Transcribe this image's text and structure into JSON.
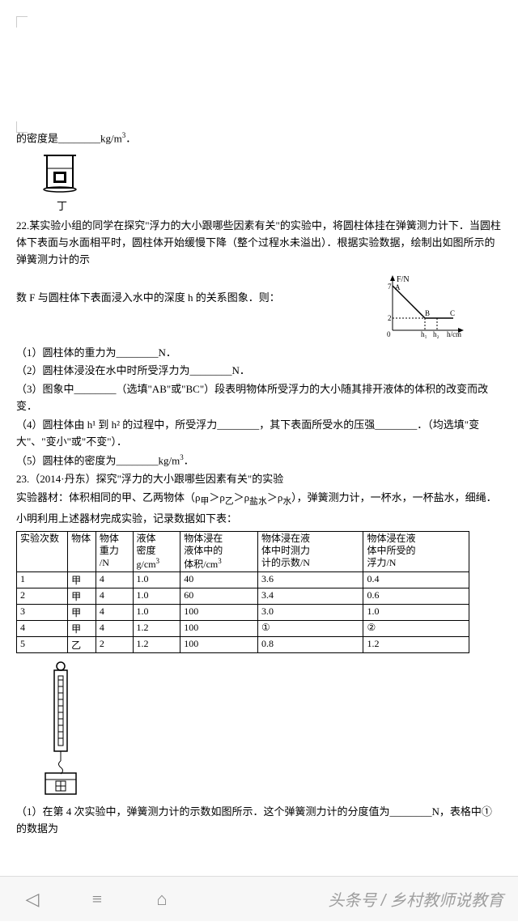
{
  "intro": {
    "density_prefix": "的密度是",
    "density_blank": "________",
    "density_unit": "kg/m",
    "density_unit_sup": "3",
    "beaker_caption": "丁"
  },
  "q22": {
    "num": "22.",
    "text1": "某实验小组的同学在探究\"浮力的大小跟哪些因素有关\"的实验中，将圆柱体挂在弹簧测力计下．当圆柱体下表面与水面相平时，圆柱体开始缓慢下降（整个过程水未溢出）．根据实验数据，绘制出如图所示的弹簧测力计的示",
    "text2": "数 F 与圆柱体下表面浸入水中的深度 h 的关系图象．则：",
    "graph": {
      "ylabel": "F/N",
      "xlabel": "h/cm",
      "ticks_x": [
        "h₁",
        "h₂"
      ],
      "pointA": "A",
      "pointB": "B",
      "pointC": "C",
      "y_values": [
        7,
        2
      ],
      "colors": {
        "axis": "#000000",
        "line": "#000000"
      }
    },
    "p1": "（1）圆柱体的重力为________N．",
    "p2": "（2）圆柱体浸没在水中时所受浮力为________N．",
    "p3": "（3）图象中________（选填\"AB\"或\"BC\"）段表明物体所受浮力的大小随其排开液体的体积的改变而改变．",
    "p4": "（4）圆柱体由 h¹ 到 h² 的过程中，所受浮力________，其下表面所受水的压强________．（均选填\"变大\"、\"变小\"或\"不变\"）．",
    "p5_a": "（5）圆柱体的密度为________kg/m",
    "p5_sup": "3",
    "p5_b": "．"
  },
  "q23": {
    "num": "23.",
    "title": "（2014·丹东）探究\"浮力的大小跟哪些因素有关\"的实验",
    "materials_a": "实验器材：体积相同的甲、乙两物体（ρ",
    "sub1": "甲",
    "gt1": "＞ρ",
    "sub2": "乙",
    "gt2": "＞ρ",
    "sub3": "盐水",
    "gt3": "＞ρ",
    "sub4": "水",
    "materials_b": "），弹簧测力计，一杯水，一杯盐水，细绳．",
    "preface": "小明利用上述器材完成实验，记录数据如下表：",
    "table": {
      "headers": [
        "实验次数",
        "物体",
        "物体\n重力\n/N",
        "液体\n密度\ng/cm³",
        "物体浸在\n液体中的\n体积/cm³",
        "物体浸在液\n体中时测力\n计的示数/N",
        "物体浸在液\n体中所受的\n浮力/N"
      ],
      "rows": [
        [
          "1",
          "甲",
          "4",
          "1.0",
          "40",
          "3.6",
          "0.4"
        ],
        [
          "2",
          "甲",
          "4",
          "1.0",
          "60",
          "3.4",
          "0.6"
        ],
        [
          "3",
          "甲",
          "4",
          "1.0",
          "100",
          "3.0",
          "1.0"
        ],
        [
          "4",
          "甲",
          "4",
          "1.2",
          "100",
          "①",
          "②"
        ],
        [
          "5",
          "乙",
          "2",
          "1.2",
          "100",
          "0.8",
          "1.2"
        ]
      ]
    },
    "p1": "（1）在第 4 次实验中，弹簧测力计的示数如图所示．这个弹簧测力计的分度值为________N，表格中①的数据为"
  },
  "nav": {
    "back": "◁",
    "menu": "≡",
    "home": "⌂",
    "watermark": "头条号 / 乡村教师说教育"
  },
  "colors": {
    "text": "#000000",
    "bar_bg": "#f7f7f7",
    "bar_border": "#dddddd",
    "nav_icon": "#888888",
    "wm": "#9e9e9e"
  }
}
